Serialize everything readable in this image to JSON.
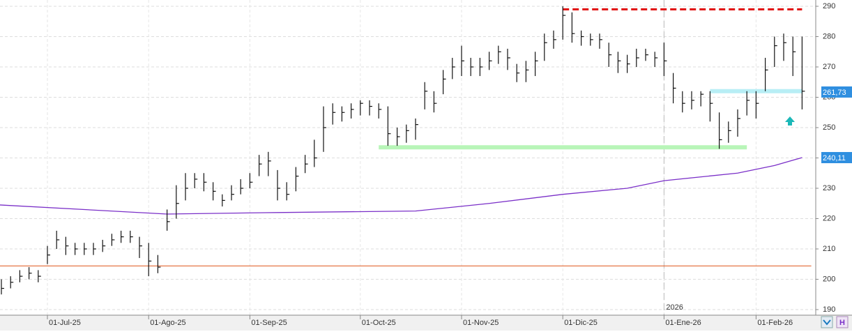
{
  "chart_data": {
    "type": "ohlc",
    "categories": [
      null,
      null,
      null,
      null,
      null,
      "01-Jul-25",
      null,
      null,
      null,
      null,
      null,
      null,
      null,
      null,
      null,
      null,
      "01-Ago-25",
      null,
      null,
      null,
      null,
      null,
      null,
      null,
      null,
      null,
      null,
      "01-Sep-25",
      null,
      null,
      null,
      null,
      null,
      null,
      null,
      null,
      null,
      null,
      null,
      "01-Oct-25",
      null,
      null,
      null,
      null,
      null,
      null,
      null,
      null,
      null,
      null,
      "01-Nov-25",
      null,
      null,
      null,
      null,
      null,
      null,
      null,
      null,
      null,
      null,
      "01-Dic-25",
      null,
      null,
      null,
      null,
      null,
      null,
      null,
      null,
      null,
      null,
      "01-Ene-26",
      null,
      null,
      null,
      null,
      null,
      null,
      null,
      null,
      null,
      "01-Feb-26",
      null,
      null,
      null,
      null,
      null
    ],
    "high": [
      200,
      201,
      203,
      204,
      203,
      211,
      216,
      214,
      212,
      212,
      212,
      213,
      215,
      216,
      216,
      214,
      212,
      208,
      223,
      231,
      235,
      235,
      235,
      232,
      228,
      231,
      233,
      235,
      241,
      242,
      236,
      232,
      237,
      241,
      246,
      257,
      258,
      257,
      258,
      259,
      259,
      258,
      257,
      250,
      251,
      253,
      265,
      262,
      269,
      273,
      277,
      273,
      273,
      275,
      277,
      276,
      271,
      272,
      275,
      281,
      282,
      290,
      288,
      282,
      281,
      281,
      278,
      275,
      274,
      276,
      276,
      275,
      278,
      268,
      262,
      262,
      262,
      262,
      255,
      252,
      256,
      262,
      262,
      273,
      280,
      281,
      280,
      280
    ],
    "low": [
      195,
      197,
      199,
      200,
      199,
      205,
      210,
      208,
      208,
      208,
      208,
      209,
      211,
      212,
      212,
      207,
      201,
      202,
      216,
      220,
      226,
      230,
      229,
      226,
      224,
      226,
      228,
      230,
      234,
      234,
      226,
      226,
      229,
      235,
      237,
      242,
      251,
      252,
      253,
      254,
      254,
      253,
      244,
      244,
      245,
      246,
      256,
      255,
      261,
      266,
      267,
      267,
      267,
      269,
      271,
      269,
      265,
      265,
      267,
      272,
      276,
      279,
      278,
      277,
      277,
      276,
      270,
      268,
      268,
      270,
      272,
      270,
      267,
      258,
      255,
      256,
      257,
      252,
      243,
      245,
      247,
      254,
      253,
      262,
      270,
      272,
      267,
      256
    ],
    "close": [
      197,
      199,
      201,
      202,
      201,
      208,
      213,
      211,
      210,
      210,
      210,
      211,
      213,
      214,
      214,
      211,
      206,
      204,
      219,
      225,
      230,
      233,
      232,
      229,
      226,
      228,
      230,
      232,
      238,
      239,
      230,
      228,
      234,
      238,
      240,
      250,
      255,
      255,
      256,
      258,
      257,
      256,
      248,
      247,
      249,
      251,
      262,
      258,
      266,
      270,
      272,
      270,
      270,
      272,
      275,
      273,
      268,
      269,
      272,
      278,
      279,
      287,
      281,
      280,
      279,
      279,
      274,
      272,
      271,
      273,
      274,
      273,
      272,
      263,
      258,
      259,
      261,
      258,
      246,
      249,
      253,
      259,
      258,
      269,
      277,
      278,
      275,
      262
    ],
    "bar_color": "#111111",
    "moving_average": {
      "color": "#7a2fc8",
      "x": [
        0,
        18,
        30,
        45,
        53,
        61,
        68,
        72,
        80,
        84,
        87
      ],
      "values": [
        224.5,
        221.5,
        222,
        222.5,
        225,
        228,
        230,
        232.5,
        235,
        237.5,
        240.11
      ]
    },
    "levels": [
      {
        "value": 204.4,
        "color": "#e0561b",
        "from": 0,
        "to": 88,
        "dashed": false,
        "width": 1
      },
      {
        "value": 289,
        "color": "#e01010",
        "from": 61,
        "to": 87,
        "dashed": true,
        "width": 3
      },
      {
        "value": 243.5,
        "color": "#b8f5b8",
        "from": 41,
        "to": 81,
        "dashed": false,
        "width": 6
      },
      {
        "value": 262,
        "color": "#b8eef5",
        "from": 77,
        "to": 87,
        "dashed": false,
        "width": 6
      }
    ],
    "price_labels": [
      {
        "value": 261.73,
        "label": "261,73",
        "color": "#2f8fe0"
      },
      {
        "value": 240.11,
        "label": "240,11",
        "color": "#2f8fe0"
      }
    ],
    "year_marker": {
      "label": "2026",
      "index": 72
    },
    "ylim": [
      190,
      290
    ],
    "yticks": [
      190,
      200,
      210,
      220,
      230,
      240,
      250,
      260,
      270,
      280,
      290
    ],
    "grid": true
  }
}
